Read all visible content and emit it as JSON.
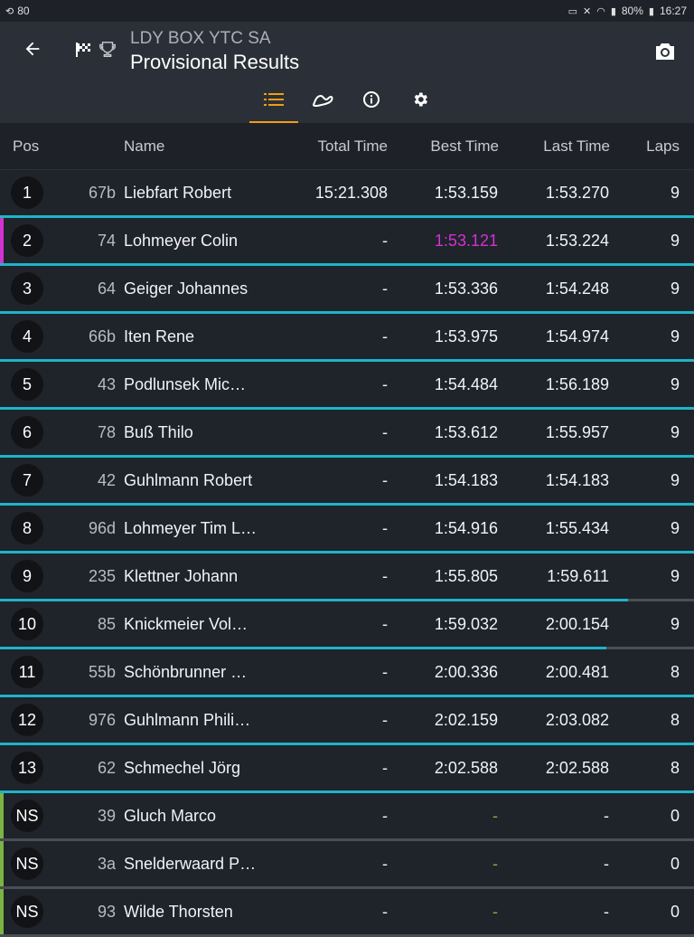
{
  "status": {
    "left_text": "80",
    "battery": "80%",
    "time": "16:27"
  },
  "app": {
    "subtitle": "LDY BOX YTC SA",
    "title": "Provisional Results"
  },
  "columns": {
    "pos": "Pos",
    "name": "Name",
    "total": "Total Time",
    "best": "Best Time",
    "last": "Last Time",
    "laps": "Laps"
  },
  "rows": [
    {
      "pos": "1",
      "num": "67b",
      "name": "Liebfart Robert",
      "total": "15:21.308",
      "best": "1:53.159",
      "last": "1:53.270",
      "laps": "9"
    },
    {
      "pos": "2",
      "num": "74",
      "name": "Lohmeyer Colin",
      "total": "-",
      "best": "1:53.121",
      "last": "1:53.224",
      "laps": "9",
      "highlight": "purple"
    },
    {
      "pos": "3",
      "num": "64",
      "name": "Geiger Johannes",
      "total": "-",
      "best": "1:53.336",
      "last": "1:54.248",
      "laps": "9"
    },
    {
      "pos": "4",
      "num": "66b",
      "name": "Iten Rene",
      "total": "-",
      "best": "1:53.975",
      "last": "1:54.974",
      "laps": "9"
    },
    {
      "pos": "5",
      "num": "43",
      "name": "Podlunsek Mic…",
      "total": "-",
      "best": "1:54.484",
      "last": "1:56.189",
      "laps": "9"
    },
    {
      "pos": "6",
      "num": "78",
      "name": "Buß Thilo",
      "total": "-",
      "best": "1:53.612",
      "last": "1:55.957",
      "laps": "9"
    },
    {
      "pos": "7",
      "num": "42",
      "name": "Guhlmann Robert",
      "total": "-",
      "best": "1:54.183",
      "last": "1:54.183",
      "laps": "9"
    },
    {
      "pos": "8",
      "num": "96d",
      "name": "Lohmeyer Tim L…",
      "total": "-",
      "best": "1:54.916",
      "last": "1:55.434",
      "laps": "9"
    },
    {
      "pos": "9",
      "num": "235",
      "name": "Klettner Johann",
      "total": "-",
      "best": "1:55.805",
      "last": "1:59.611",
      "laps": "9",
      "progress": 0.905
    },
    {
      "pos": "10",
      "num": "85",
      "name": "Knickmeier Vol…",
      "total": "-",
      "best": "1:59.032",
      "last": "2:00.154",
      "laps": "9",
      "progress": 0.874
    },
    {
      "pos": "11",
      "num": "55b",
      "name": "Schönbrunner …",
      "total": "-",
      "best": "2:00.336",
      "last": "2:00.481",
      "laps": "8"
    },
    {
      "pos": "12",
      "num": "976",
      "name": "Guhlmann Phili…",
      "total": "-",
      "best": "2:02.159",
      "last": "2:03.082",
      "laps": "8"
    },
    {
      "pos": "13",
      "num": "62",
      "name": "Schmechel Jörg",
      "total": "-",
      "best": "2:02.588",
      "last": "2:02.588",
      "laps": "8"
    },
    {
      "pos": "NS",
      "num": "39",
      "name": "Gluch Marco",
      "total": "-",
      "best": "-",
      "last": "-",
      "laps": "0",
      "ns": true
    },
    {
      "pos": "NS",
      "num": "3a",
      "name": "Snelderwaard P…",
      "total": "-",
      "best": "-",
      "last": "-",
      "laps": "0",
      "ns": true
    },
    {
      "pos": "NS",
      "num": "93",
      "name": "Wilde Thorsten",
      "total": "-",
      "best": "-",
      "last": "-",
      "laps": "0",
      "ns": true
    }
  ],
  "colors": {
    "accent_cyan": "#1fb3c7",
    "fastest_purple": "#d332d3",
    "ns_green": "#7cb342",
    "tab_orange": "#f39c12"
  },
  "icons": [
    "back-arrow-icon",
    "checkered-flag-icon",
    "trophy-icon",
    "camera-icon",
    "list-icon",
    "track-icon",
    "info-icon",
    "settings-icon"
  ]
}
